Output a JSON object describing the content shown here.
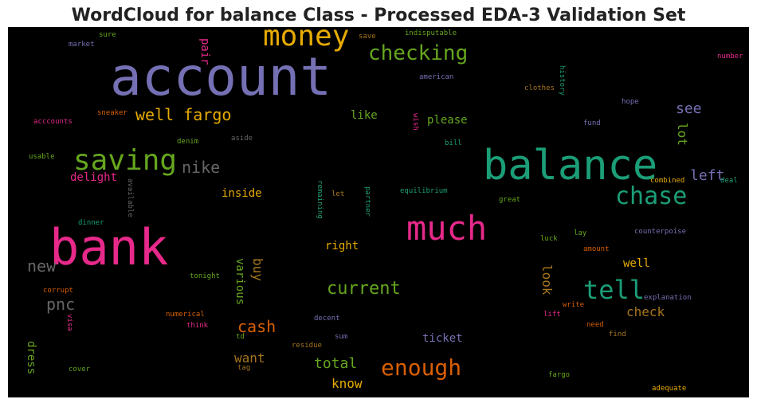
{
  "chart_data": {
    "type": "wordcloud",
    "title": "WordCloud for balance Class - Processed EDA-3 Validation Set",
    "background": "#000000",
    "words": [
      {
        "text": "account",
        "color": "#7570b3"
      },
      {
        "text": "bank",
        "color": "#e7298a"
      },
      {
        "text": "balance",
        "color": "#1b9e77"
      },
      {
        "text": "money",
        "color": "#e6ab02"
      },
      {
        "text": "much",
        "color": "#e7298a"
      },
      {
        "text": "saving",
        "color": "#66a61e"
      },
      {
        "text": "chase",
        "color": "#1b9e77"
      },
      {
        "text": "checking",
        "color": "#66a61e"
      },
      {
        "text": "tell",
        "color": "#1b9e77"
      },
      {
        "text": "enough",
        "color": "#d95f02"
      },
      {
        "text": "well fargo",
        "color": "#e6ab02"
      },
      {
        "text": "nike",
        "color": "#666666"
      },
      {
        "text": "current",
        "color": "#66a61e"
      },
      {
        "text": "new",
        "color": "#666666"
      },
      {
        "text": "pnc",
        "color": "#666666"
      },
      {
        "text": "cash",
        "color": "#d95f02"
      },
      {
        "text": "total",
        "color": "#66a61e"
      },
      {
        "text": "left",
        "color": "#7570b3"
      },
      {
        "text": "see",
        "color": "#7570b3"
      },
      {
        "text": "check",
        "color": "#a6761d"
      },
      {
        "text": "look",
        "color": "#a6761d"
      },
      {
        "text": "lot",
        "color": "#66a61e"
      },
      {
        "text": "buy",
        "color": "#a6761d"
      },
      {
        "text": "various",
        "color": "#66a61e"
      },
      {
        "text": "want",
        "color": "#a6761d"
      },
      {
        "text": "ticket",
        "color": "#7570b3"
      },
      {
        "text": "know",
        "color": "#e6ab02"
      },
      {
        "text": "well",
        "color": "#e6ab02"
      },
      {
        "text": "dress",
        "color": "#66a61e"
      },
      {
        "text": "please",
        "color": "#66a61e"
      },
      {
        "text": "like",
        "color": "#66a61e"
      },
      {
        "text": "inside",
        "color": "#e6ab02"
      },
      {
        "text": "right",
        "color": "#e6ab02"
      },
      {
        "text": "delight",
        "color": "#e7298a"
      },
      {
        "text": "pair",
        "color": "#e7298a"
      },
      {
        "text": "sure",
        "color": "#66a61e"
      },
      {
        "text": "market",
        "color": "#7570b3"
      },
      {
        "text": "save",
        "color": "#a6761d"
      },
      {
        "text": "indisputable",
        "color": "#66a61e"
      },
      {
        "text": "american",
        "color": "#7570b3"
      },
      {
        "text": "number",
        "color": "#e7298a"
      },
      {
        "text": "history",
        "color": "#1b9e77"
      },
      {
        "text": "clothes",
        "color": "#a6761d"
      },
      {
        "text": "hope",
        "color": "#7570b3"
      },
      {
        "text": "acccounts",
        "color": "#e7298a"
      },
      {
        "text": "sneaker",
        "color": "#d95f02"
      },
      {
        "text": "wish",
        "color": "#e7298a"
      },
      {
        "text": "fund",
        "color": "#7570b3"
      },
      {
        "text": "denim",
        "color": "#66a61e"
      },
      {
        "text": "aside",
        "color": "#666666"
      },
      {
        "text": "bill",
        "color": "#1b9e77"
      },
      {
        "text": "usable",
        "color": "#66a61e"
      },
      {
        "text": "available",
        "color": "#666666"
      },
      {
        "text": "remaining",
        "color": "#1b9e77"
      },
      {
        "text": "let",
        "color": "#a6761d"
      },
      {
        "text": "partner",
        "color": "#1b9e77"
      },
      {
        "text": "equilibrium",
        "color": "#1b9e77"
      },
      {
        "text": "combined",
        "color": "#e6ab02"
      },
      {
        "text": "deal",
        "color": "#1b9e77"
      },
      {
        "text": "great",
        "color": "#66a61e"
      },
      {
        "text": "dinner",
        "color": "#1b9e77"
      },
      {
        "text": "counterpoise",
        "color": "#7570b3"
      },
      {
        "text": "lay",
        "color": "#66a61e"
      },
      {
        "text": "luck",
        "color": "#66a61e"
      },
      {
        "text": "amount",
        "color": "#d95f02"
      },
      {
        "text": "tonight",
        "color": "#66a61e"
      },
      {
        "text": "corrupt",
        "color": "#d95f02"
      },
      {
        "text": "explanation",
        "color": "#7570b3"
      },
      {
        "text": "write",
        "color": "#d95f02"
      },
      {
        "text": "numerical",
        "color": "#d95f02"
      },
      {
        "text": "decent",
        "color": "#7570b3"
      },
      {
        "text": "lift",
        "color": "#e7298a"
      },
      {
        "text": "need",
        "color": "#d95f02"
      },
      {
        "text": "visa",
        "color": "#e7298a"
      },
      {
        "text": "think",
        "color": "#e7298a"
      },
      {
        "text": "td",
        "color": "#66a61e"
      },
      {
        "text": "sum",
        "color": "#7570b3"
      },
      {
        "text": "residue",
        "color": "#a6761d"
      },
      {
        "text": "find",
        "color": "#a6761d"
      },
      {
        "text": "tag",
        "color": "#a6761d"
      },
      {
        "text": "cover",
        "color": "#66a61e"
      },
      {
        "text": "fargo",
        "color": "#66a61e"
      },
      {
        "text": "adequate",
        "color": "#e6ab02"
      }
    ]
  }
}
